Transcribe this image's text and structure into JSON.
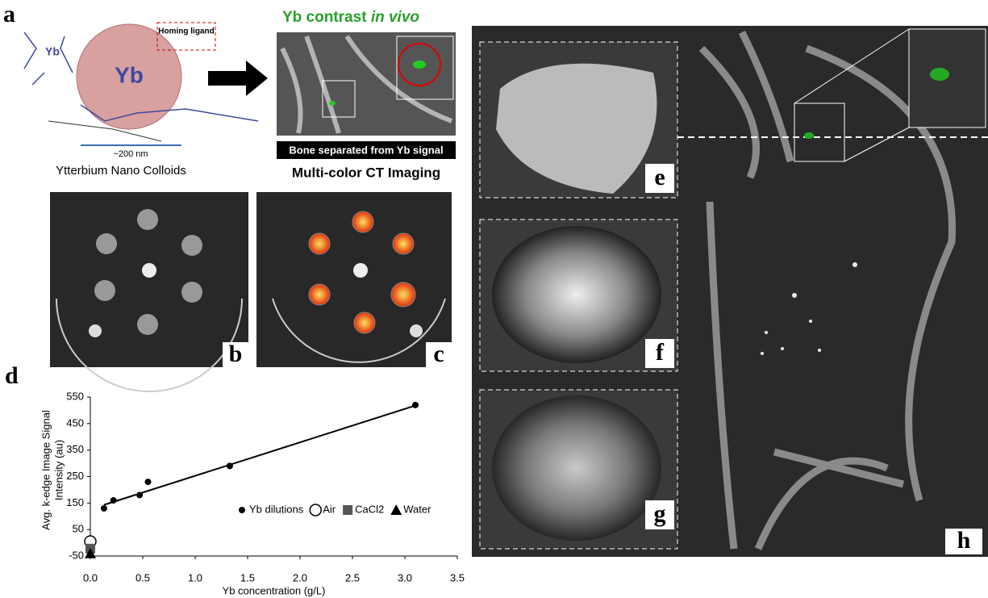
{
  "panel_labels": {
    "a": "a",
    "b": "b",
    "c": "c",
    "d": "d",
    "e": "e",
    "f": "f",
    "g": "g",
    "h": "h"
  },
  "panel_a": {
    "homing_ligand": "Homing ligand",
    "center_label": "Yb",
    "ligand_label": "Yb",
    "size": "~200 nm",
    "caption": "Ytterbium Nano Colloids",
    "contrast_title": "Yb contrast",
    "contrast_title_italic": "in vivo",
    "bone_note": "Bone separated from Yb signal",
    "imaging_title": "Multi-color CT Imaging"
  },
  "chart_data": {
    "type": "scatter",
    "xlabel": "Yb concentration (g/L)",
    "ylabel": [
      "Avg. k-edge Image Signal",
      "Intensity (au)"
    ],
    "xlim": [
      0,
      3.5
    ],
    "xticks": [
      {
        "value": 0,
        "label": "0.0"
      },
      {
        "value": 0.5,
        "label": "0.5"
      },
      {
        "value": 1,
        "label": "1.0"
      },
      {
        "value": 1.5,
        "label": "1.5"
      },
      {
        "value": 2,
        "label": "2.0"
      },
      {
        "value": 2.5,
        "label": "2.5"
      },
      {
        "value": 3,
        "label": "3.0"
      },
      {
        "value": 3.5,
        "label": "3.5"
      }
    ],
    "ylim": [
      -50,
      550
    ],
    "yticks": [
      -50,
      50,
      150,
      250,
      350,
      450,
      550
    ],
    "series": [
      {
        "name": "Yb dilutions",
        "color": "#000000",
        "marker": "circle",
        "x": [
          0.13,
          0.22,
          0.47,
          0.55,
          1.33,
          3.1
        ],
        "values": [
          130,
          160,
          180,
          230,
          290,
          520
        ]
      },
      {
        "name": "Air",
        "color": "#000000",
        "marker": "open-circle",
        "x": [
          0
        ],
        "values": [
          5
        ]
      },
      {
        "name": "CaCl2",
        "color": "#000000",
        "marker": "square",
        "x": [
          0
        ],
        "values": [
          -22
        ]
      },
      {
        "name": "Water",
        "color": "#000000",
        "marker": "triangle",
        "x": [
          0
        ],
        "values": [
          -40
        ]
      }
    ],
    "trend_line": {
      "x": [
        0.13,
        3.1
      ],
      "values": [
        143,
        518
      ]
    }
  }
}
